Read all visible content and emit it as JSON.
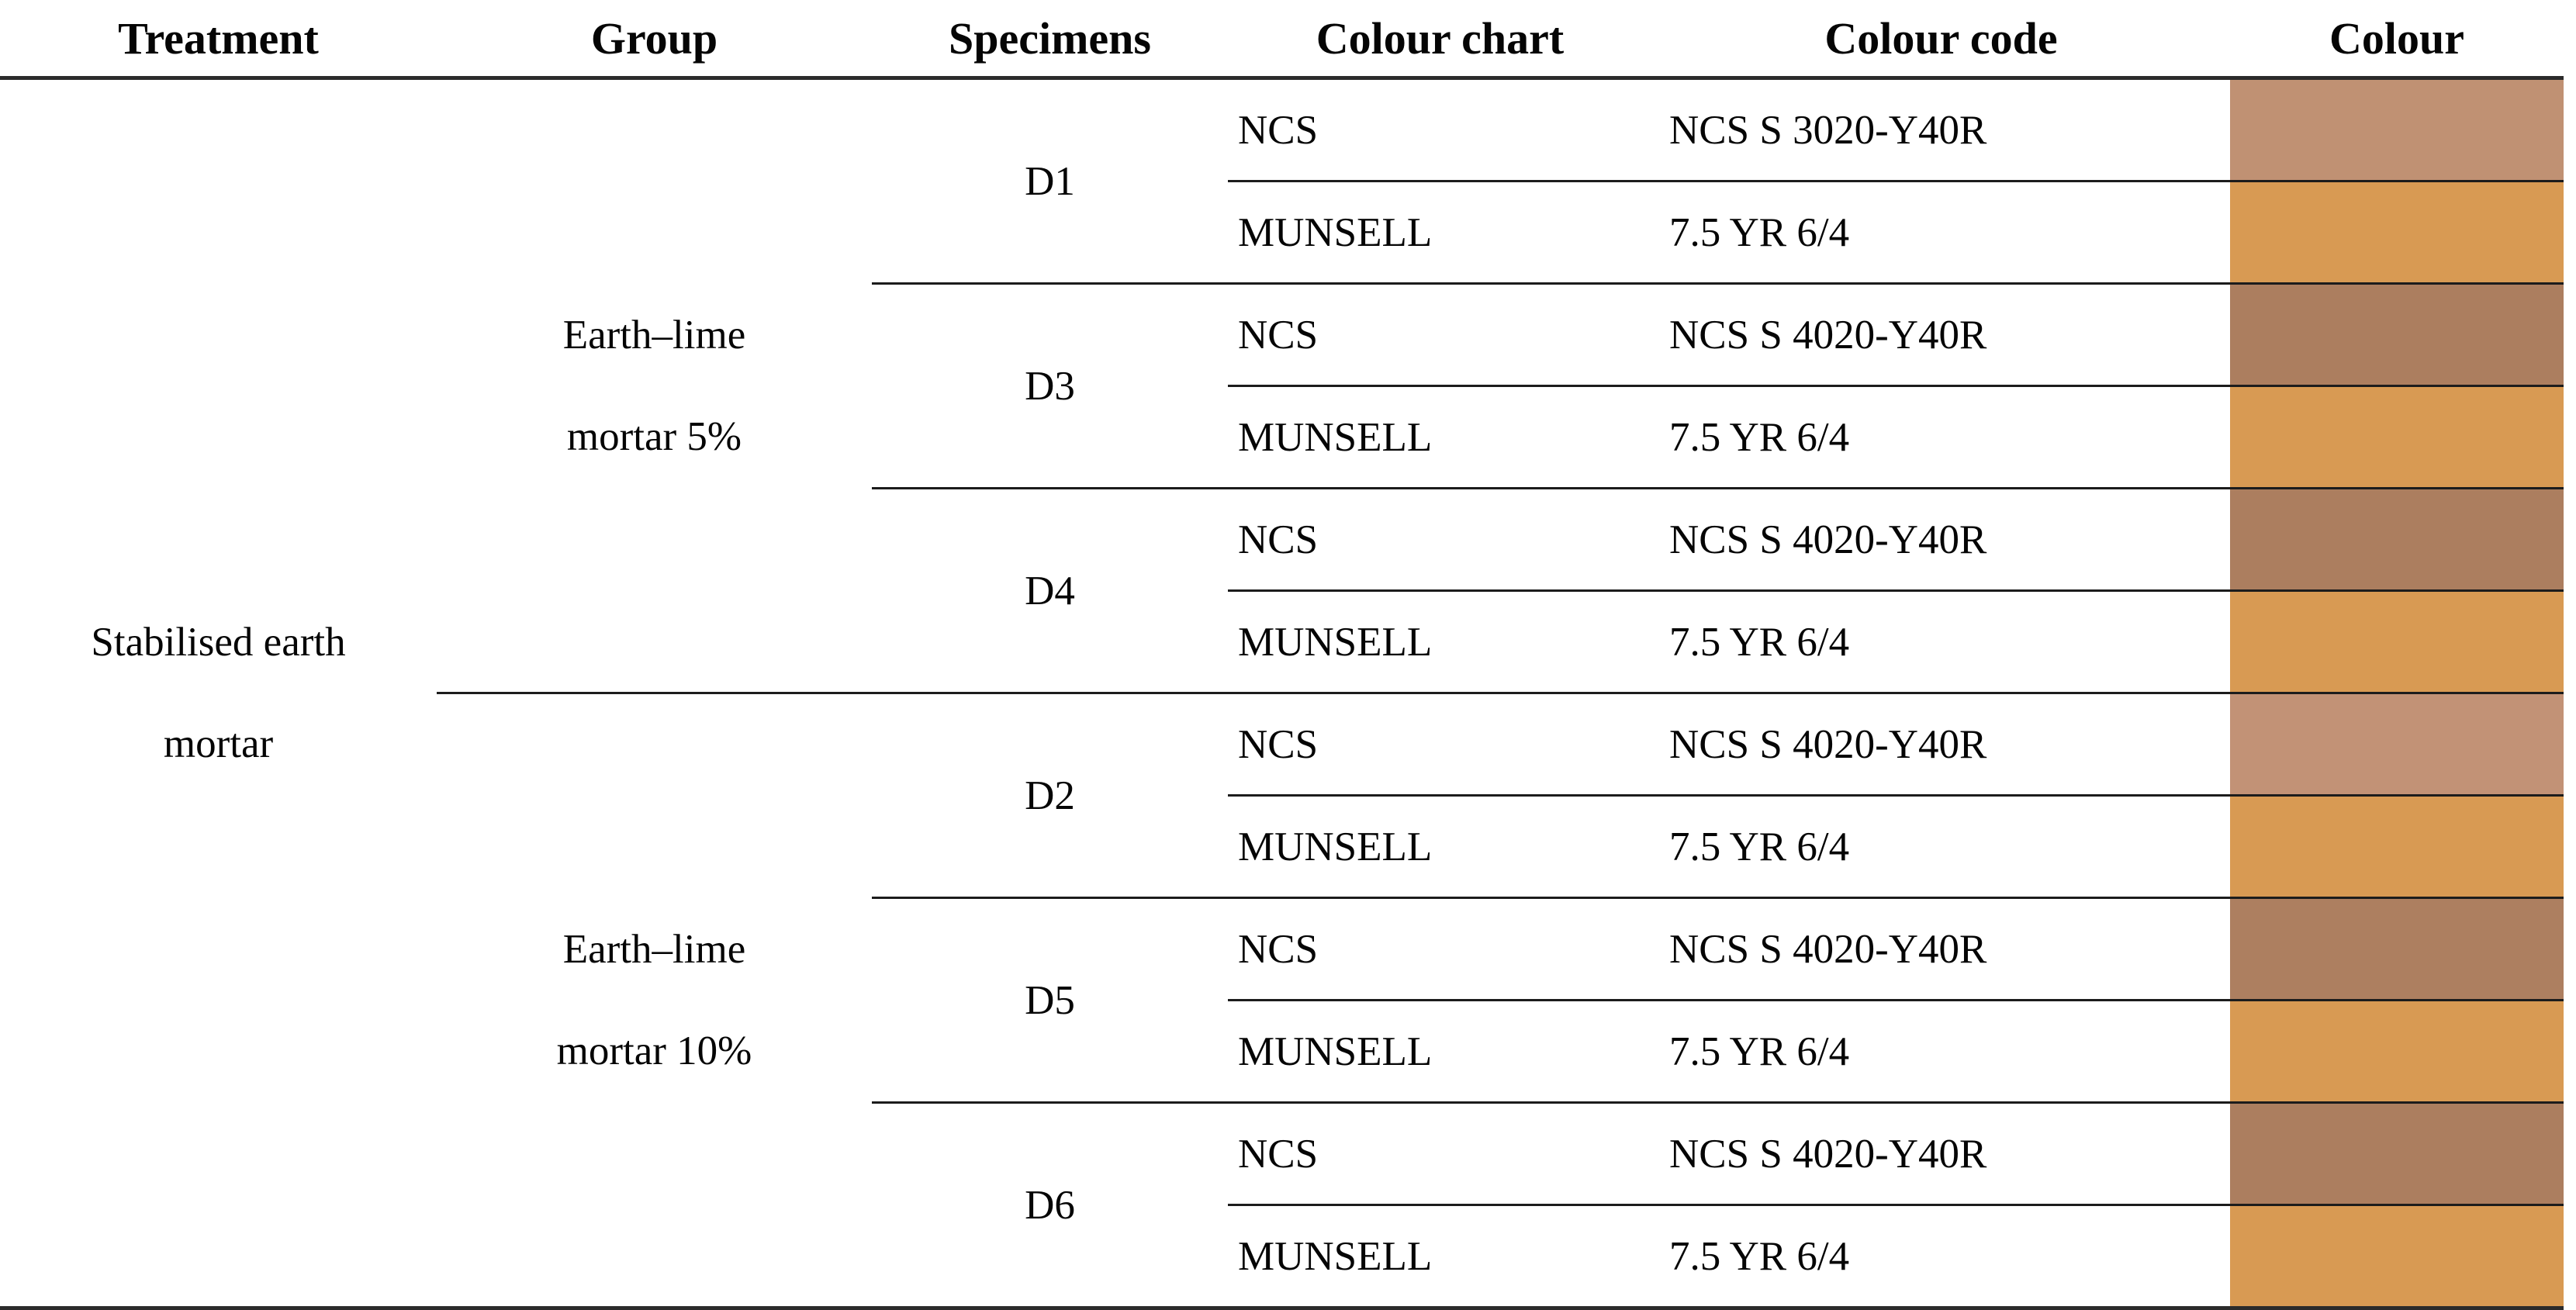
{
  "page": {
    "background": "#ffffff",
    "rule_heavy_color": "#2b2b2b",
    "rule_light_color": "#1c1c1c"
  },
  "table": {
    "headers": {
      "treatment": "Treatment",
      "group": "Group",
      "specimens": "Specimens",
      "colour_chart": "Colour chart",
      "colour_code": "Colour code",
      "colour": "Colour"
    },
    "treatment": "Stabilised earth mortar",
    "groups": [
      {
        "label": "Earth–lime mortar 5%",
        "specimens": [
          {
            "id": "D1",
            "rows": [
              {
                "chart": "NCS",
                "code": "NCS S 3020-Y40R",
                "colour": "#c09173"
              },
              {
                "chart": "MUNSELL",
                "code": "7.5 YR 6/4",
                "colour": "#d89a53"
              }
            ]
          },
          {
            "id": "D3",
            "rows": [
              {
                "chart": "NCS",
                "code": "NCS S 4020-Y40R",
                "colour": "#ac7e5f"
              },
              {
                "chart": "MUNSELL",
                "code": "7.5 YR 6/4",
                "colour": "#d89a53"
              }
            ]
          },
          {
            "id": "D4",
            "rows": [
              {
                "chart": "NCS",
                "code": "NCS S 4020-Y40R",
                "colour": "#ac7e5f"
              },
              {
                "chart": "MUNSELL",
                "code": "7.5 YR 6/4",
                "colour": "#d89a53"
              }
            ]
          }
        ]
      },
      {
        "label": "Earth–lime mortar 10%",
        "specimens": [
          {
            "id": "D2",
            "rows": [
              {
                "chart": "NCS",
                "code": "NCS S 4020-Y40R",
                "colour": "#c29276"
              },
              {
                "chart": "MUNSELL",
                "code": "7.5 YR 6/4",
                "colour": "#d89a53"
              }
            ]
          },
          {
            "id": "D5",
            "rows": [
              {
                "chart": "NCS",
                "code": "NCS S 4020-Y40R",
                "colour": "#ad7f60"
              },
              {
                "chart": "MUNSELL",
                "code": "7.5 YR 6/4",
                "colour": "#d89a53"
              }
            ]
          },
          {
            "id": "D6",
            "rows": [
              {
                "chart": "NCS",
                "code": "NCS S 4020-Y40R",
                "colour": "#ac7e5f"
              },
              {
                "chart": "MUNSELL",
                "code": "7.5 YR 6/4",
                "colour": "#d89a53"
              }
            ]
          }
        ]
      }
    ]
  }
}
